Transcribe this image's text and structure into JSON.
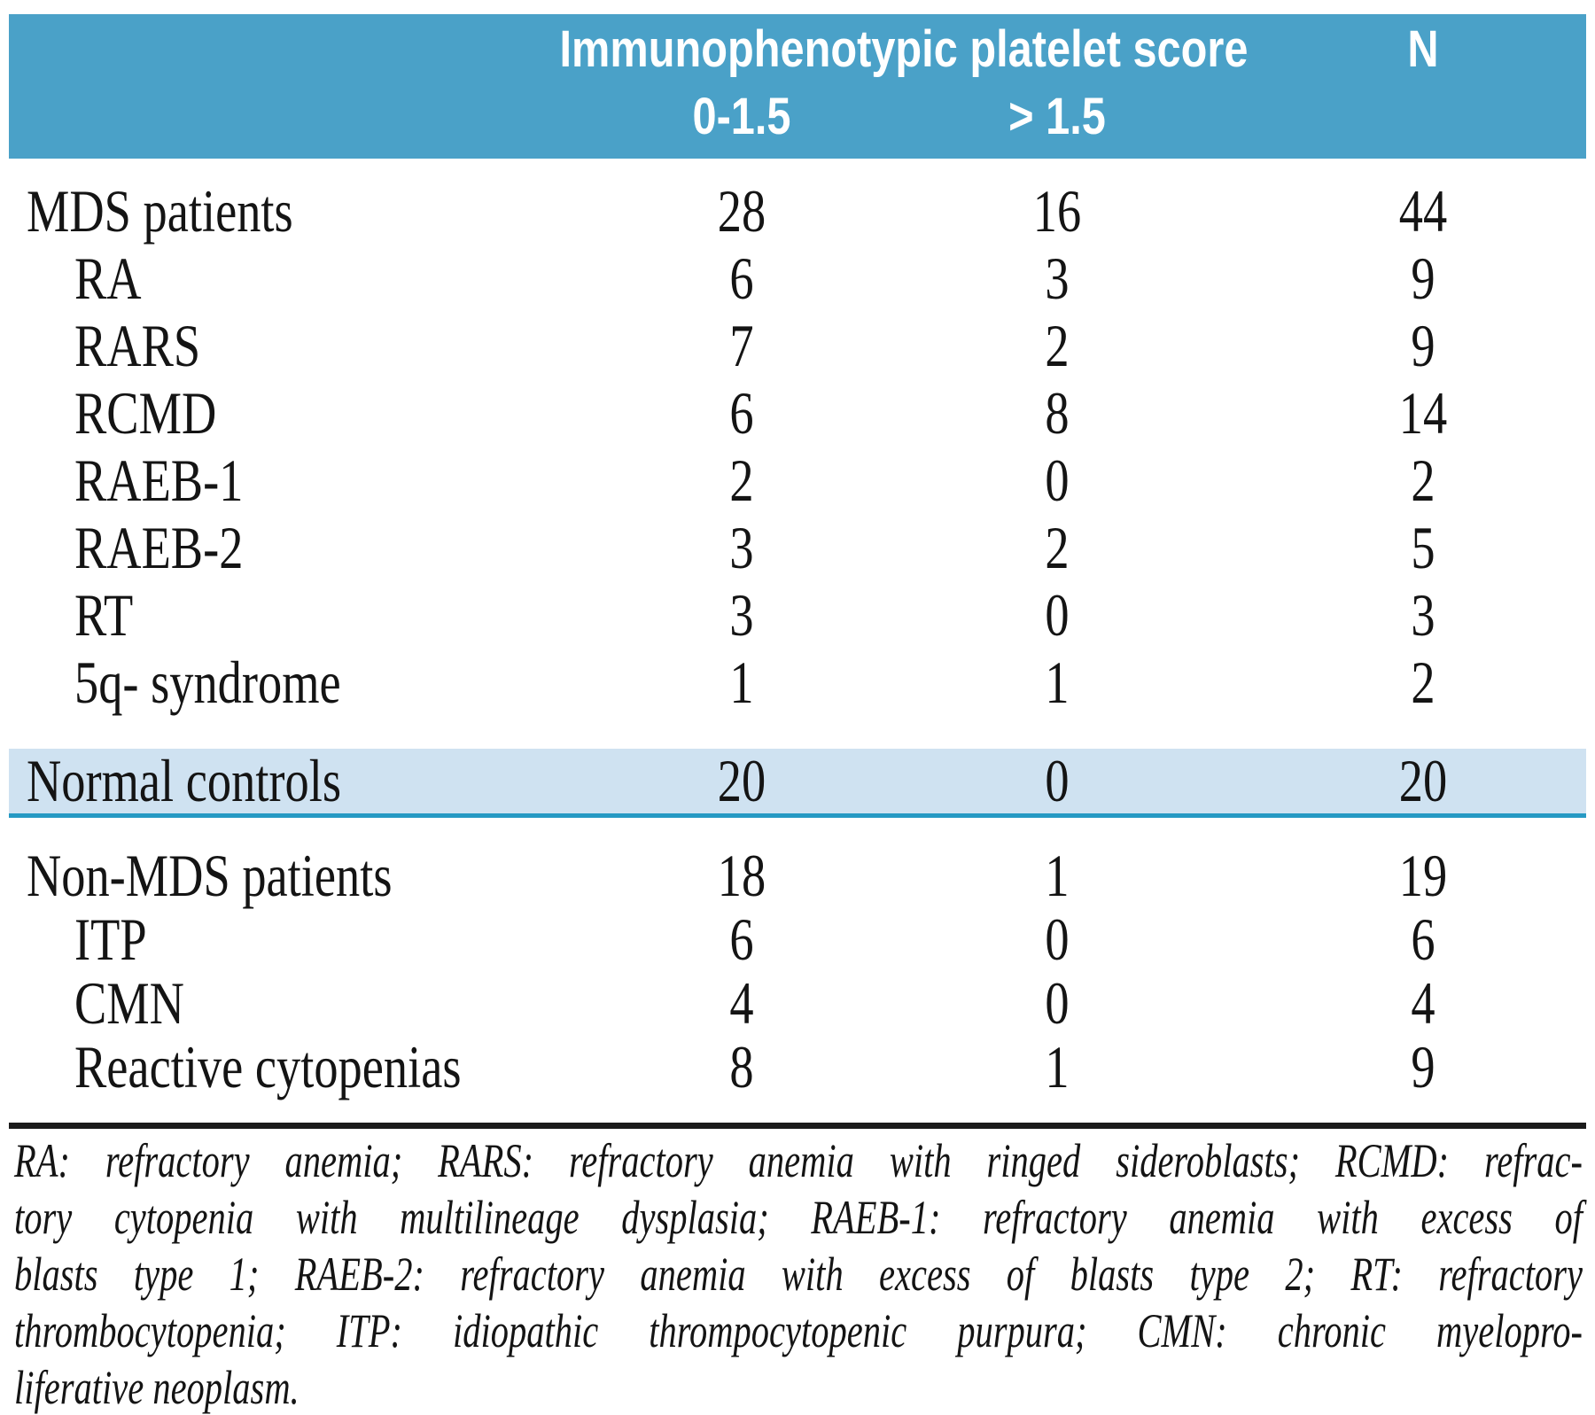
{
  "colors": {
    "header_bg": "#4AA1C8",
    "band_bg": "#CFE2F1",
    "band_line": "#2599C3",
    "rule": "#1B1B1B",
    "text": "#141414",
    "header_text": "#FFFFFF"
  },
  "table": {
    "header": {
      "group": "Immunophenotypic platelet score",
      "low": "0-1.5",
      "high": "> 1.5",
      "n": "N"
    },
    "mds_rows": [
      {
        "label": "MDS patients",
        "low": "28",
        "high": "16",
        "n": "44"
      },
      {
        "label": "RA",
        "low": "6",
        "high": "3",
        "n": "9"
      },
      {
        "label": "RARS",
        "low": "7",
        "high": "2",
        "n": "9"
      },
      {
        "label": "RCMD",
        "low": "6",
        "high": "8",
        "n": "14"
      },
      {
        "label": "RAEB-1",
        "low": "2",
        "high": "0",
        "n": "2"
      },
      {
        "label": "RAEB-2",
        "low": "3",
        "high": "2",
        "n": "5"
      },
      {
        "label": "RT",
        "low": "3",
        "high": "0",
        "n": "3"
      },
      {
        "label": "5q- syndrome",
        "low": "1",
        "high": "1",
        "n": "2"
      }
    ],
    "control_row": {
      "label": "Normal controls",
      "low": "20",
      "high": "0",
      "n": "20"
    },
    "nonmds_rows": [
      {
        "label": "Non-MDS patients",
        "low": "18",
        "high": "1",
        "n": "19"
      },
      {
        "label": "ITP",
        "low": "6",
        "high": "0",
        "n": "6"
      },
      {
        "label": "CMN",
        "low": "4",
        "high": "0",
        "n": "4"
      },
      {
        "label": "Reactive cytopenias",
        "low": "8",
        "high": "1",
        "n": "9"
      }
    ]
  },
  "footnote": {
    "lines": [
      "RA: refractory anemia; RARS: refractory anemia with ringed sideroblasts; RCMD: refrac-",
      "tory cytopenia with multilineage dysplasia; RAEB-1: refractory anemia with excess of",
      "blasts type 1; RAEB-2: refractory anemia with excess of blasts type 2; RT: refractory",
      "thrombocytopenia; ITP: idiopathic thrompocytopenic purpura; CMN: chronic myelopro-",
      "liferative neoplasm."
    ]
  }
}
